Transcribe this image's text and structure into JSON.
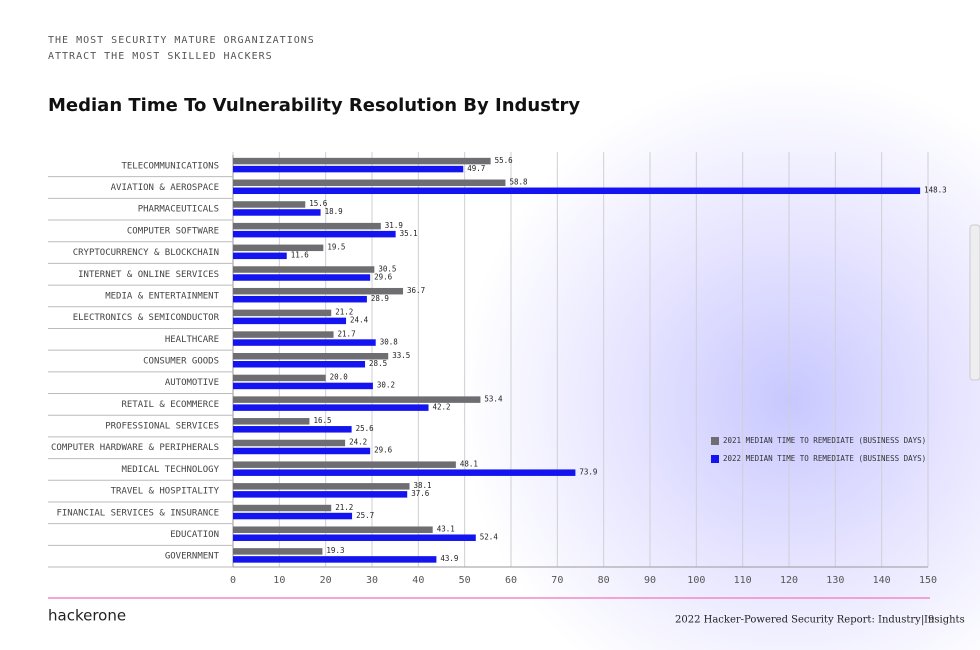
{
  "header": {
    "kicker": [
      "THE MOST SECURITY MATURE ORGANIZATIONS",
      "ATTRACT THE MOST SKILLED HACKERS"
    ]
  },
  "chart_data": {
    "type": "bar",
    "orientation": "horizontal",
    "title": "Median Time To Vulnerability Resolution By Industry",
    "categories": [
      "TELECOMMUNICATIONS",
      "AVIATION & AEROSPACE",
      "PHARMACEUTICALS",
      "COMPUTER SOFTWARE",
      "CRYPTOCURRENCY & BLOCKCHAIN",
      "INTERNET & ONLINE SERVICES",
      "MEDIA & ENTERTAINMENT",
      "ELECTRONICS & SEMICONDUCTOR",
      "HEALTHCARE",
      "CONSUMER GOODS",
      "AUTOMOTIVE",
      "RETAIL & ECOMMERCE",
      "PROFESSIONAL SERVICES",
      "COMPUTER HARDWARE & PERIPHERALS",
      "MEDICAL TECHNOLOGY",
      "TRAVEL & HOSPITALITY",
      "FINANCIAL SERVICES & INSURANCE",
      "EDUCATION",
      "GOVERNMENT"
    ],
    "series": [
      {
        "name": "2021 MEDIAN TIME TO REMEDIATE (BUSINESS DAYS)",
        "color": "#6e6e72",
        "values": [
          55.6,
          58.8,
          15.6,
          31.9,
          19.5,
          30.5,
          36.7,
          21.2,
          21.7,
          33.5,
          20.0,
          53.4,
          16.5,
          24.2,
          48.1,
          38.1,
          21.2,
          43.1,
          19.3
        ],
        "value_labels": [
          "55.6",
          "58.8",
          "15.6",
          "31.9",
          "19.5",
          "30.5",
          "36.7",
          "21.2",
          "21.7",
          "33.5",
          "20.0",
          "53.4",
          "16.5",
          "24.2",
          "48.1",
          "38.1",
          "21.2",
          "43.1",
          "19.3"
        ]
      },
      {
        "name": "2022 MEDIAN TIME TO REMEDIATE (BUSINESS DAYS)",
        "color": "#1414f0",
        "values": [
          49.7,
          148.3,
          18.9,
          35.1,
          11.6,
          29.6,
          28.9,
          24.4,
          30.8,
          28.5,
          30.2,
          42.2,
          25.6,
          29.6,
          73.9,
          37.6,
          25.7,
          52.4,
          43.9
        ]
      }
    ],
    "xlim": [
      0,
      150
    ],
    "xticks": [
      0,
      10,
      20,
      30,
      40,
      50,
      60,
      70,
      80,
      90,
      100,
      110,
      120,
      130,
      140,
      150
    ],
    "grid": true,
    "legend": "right"
  },
  "footer": {
    "logo": "hackerone",
    "text": "2022 Hacker-Powered Security Report: Industry Insights",
    "separator": "|",
    "page": "9"
  }
}
